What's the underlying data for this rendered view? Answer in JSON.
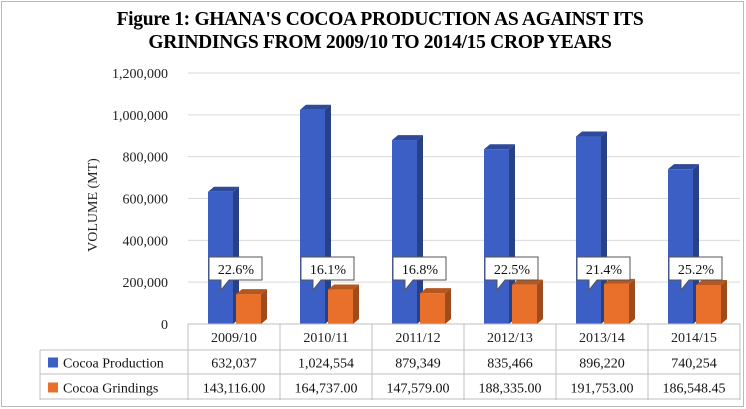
{
  "chart_data": {
    "type": "bar",
    "title_lines": [
      "Figure 1: GHANA'S COCOA PRODUCTION AS AGAINST ITS",
      "GRINDINGS FROM 2009/10 TO 2014/15 CROP YEARS"
    ],
    "ylabel": "VOLUME (MT)",
    "xlabel": "",
    "ylim": [
      0,
      1200000
    ],
    "yticks": [
      "1,200,000",
      "1,000,000",
      "800,000",
      "600,000",
      "400,000",
      "200,000",
      "0"
    ],
    "ytick_values": [
      1200000,
      1000000,
      800000,
      600000,
      400000,
      200000,
      0
    ],
    "categories": [
      "2009/10",
      "2010/11",
      "2011/12",
      "2012/13",
      "2013/14",
      "2014/15"
    ],
    "series": [
      {
        "name": "Cocoa Production",
        "color": "#3b5fc4",
        "values": [
          632037,
          1024554,
          879349,
          835466,
          896220,
          740254
        ],
        "labels": [
          "632,037",
          "1,024,554",
          "879,349",
          "835,466",
          "896,220",
          "740,254"
        ]
      },
      {
        "name": "Cocoa Grindings",
        "color": "#e8702a",
        "values": [
          143116.0,
          164737.0,
          147579.0,
          188335.0,
          191753.0,
          186548.45
        ],
        "labels": [
          "143,116.00",
          "164,737.00",
          "147,579.00",
          "188,335.00",
          "191,753.00",
          "186,548.45"
        ]
      }
    ],
    "annotations": [
      "22.6%",
      "16.1%",
      "16.8%",
      "22.5%",
      "21.4%",
      "25.2%"
    ],
    "grid": true,
    "data_table": true,
    "legend": "in data table"
  }
}
